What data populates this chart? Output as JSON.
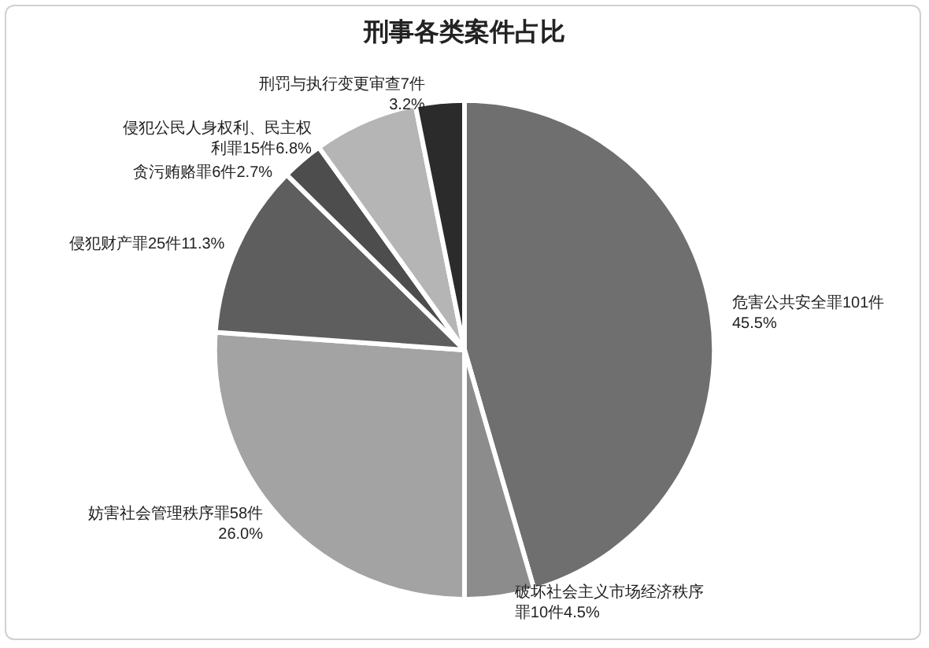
{
  "chart_data": {
    "type": "pie",
    "title": "刑事各类案件占比",
    "categories": [
      "危害公共安全罪",
      "破坏社会主义市场经济秩序罪",
      "妨害社会管理秩序罪",
      "侵犯财产罪",
      "贪污贿赂罪",
      "侵犯公民人身权利、民主权利罪",
      "刑罚与执行变更审查"
    ],
    "values": [
      101,
      10,
      58,
      25,
      6,
      15,
      7
    ],
    "value_labels": [
      "101件45.5%",
      "10件4.5%",
      "58件26.0%",
      "25件11.3%",
      "6件2.7%",
      "15件6.8%",
      "7件3.2%"
    ],
    "colors": [
      "#6f6f6f",
      "#8c8c8c",
      "#a3a3a3",
      "#5e5e5e",
      "#4d4d4d",
      "#b5b5b5",
      "#2b2b2b"
    ],
    "legend": false
  }
}
